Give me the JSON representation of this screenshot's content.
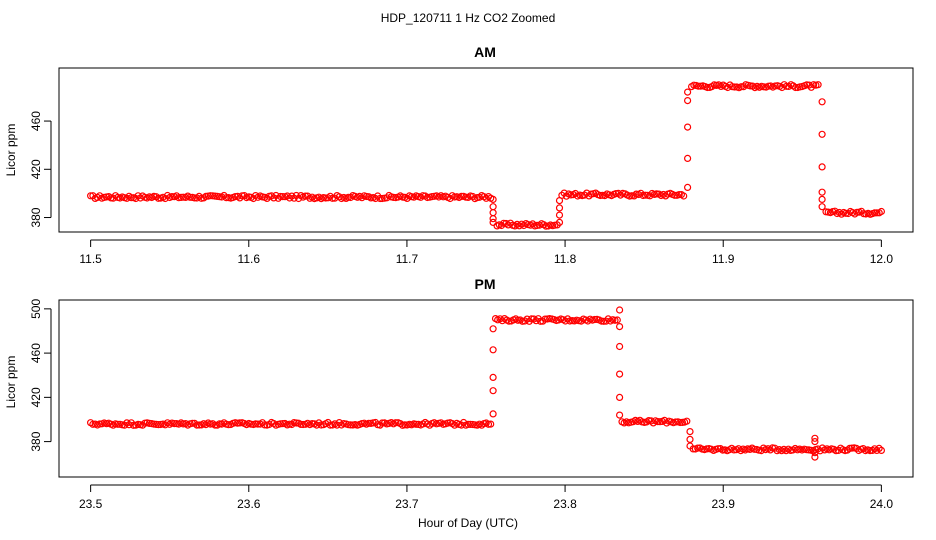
{
  "figure": {
    "title": "HDP_120711  1 Hz CO2 Zoomed",
    "xlabel": "Hour of Day (UTC)"
  },
  "colors": {
    "points": "#ff0000",
    "axis": "#000000"
  },
  "chart_data": [
    {
      "type": "scatter",
      "title": "AM",
      "ylabel": "Licor ppm",
      "xlim": [
        11.48,
        12.02
      ],
      "ylim": [
        368,
        504
      ],
      "xticks": [
        11.5,
        11.6,
        11.7,
        11.8,
        11.9,
        12.0
      ],
      "xtick_labels": [
        "11.5",
        "11.6",
        "11.7",
        "11.8",
        "11.9",
        "12.0"
      ],
      "yticks": [
        380,
        420,
        460
      ],
      "ytick_labels": [
        "380",
        "420",
        "460"
      ],
      "series": [
        {
          "segments": [
            {
              "x0": 11.5,
              "x1": 11.753,
              "y": 397
            },
            {
              "x0": 11.757,
              "x1": 11.795,
              "y": 374
            },
            {
              "x0": 11.798,
              "x1": 11.875,
              "y": 399
            },
            {
              "x0": 11.88,
              "x1": 11.96,
              "y": 489
            },
            {
              "x0": 11.965,
              "x1": 12.0,
              "y": 384
            }
          ],
          "transitions": [
            {
              "x": 11.7545,
              "y": [
                395,
                389,
                384,
                379,
                376
              ]
            },
            {
              "x": 11.7965,
              "y": [
                376,
                382,
                388,
                394
              ]
            },
            {
              "x": 11.8775,
              "y": [
                405,
                429,
                455,
                477,
                484
              ]
            },
            {
              "x": 11.9625,
              "y": [
                476,
                449,
                422,
                401,
                395,
                389
              ]
            }
          ]
        }
      ]
    },
    {
      "type": "scatter",
      "title": "PM",
      "ylabel": "Licor ppm",
      "xlim": [
        23.48,
        24.02
      ],
      "ylim": [
        348,
        508
      ],
      "xticks": [
        23.5,
        23.6,
        23.7,
        23.8,
        23.9,
        24.0
      ],
      "xtick_labels": [
        "23.5",
        "23.6",
        "23.7",
        "23.8",
        "23.9",
        "24.0"
      ],
      "yticks": [
        380,
        420,
        460,
        500
      ],
      "ytick_labels": [
        "380",
        "420",
        "460",
        "500"
      ],
      "series": [
        {
          "segments": [
            {
              "x0": 23.5,
              "x1": 23.753,
              "y": 396
            },
            {
              "x0": 23.756,
              "x1": 23.833,
              "y": 490
            },
            {
              "x0": 23.836,
              "x1": 23.877,
              "y": 398
            },
            {
              "x0": 23.881,
              "x1": 24.0,
              "y": 373
            }
          ],
          "transitions": [
            {
              "x": 23.7545,
              "y": [
                405,
                426,
                438,
                463,
                482
              ]
            },
            {
              "x": 23.8345,
              "y": [
                499,
                484,
                466,
                441,
                420,
                404
              ]
            },
            {
              "x": 23.879,
              "y": [
                389,
                382,
                376
              ]
            },
            {
              "x": 23.958,
              "y": [
                366,
                383,
                380,
                370
              ]
            }
          ]
        }
      ]
    }
  ]
}
